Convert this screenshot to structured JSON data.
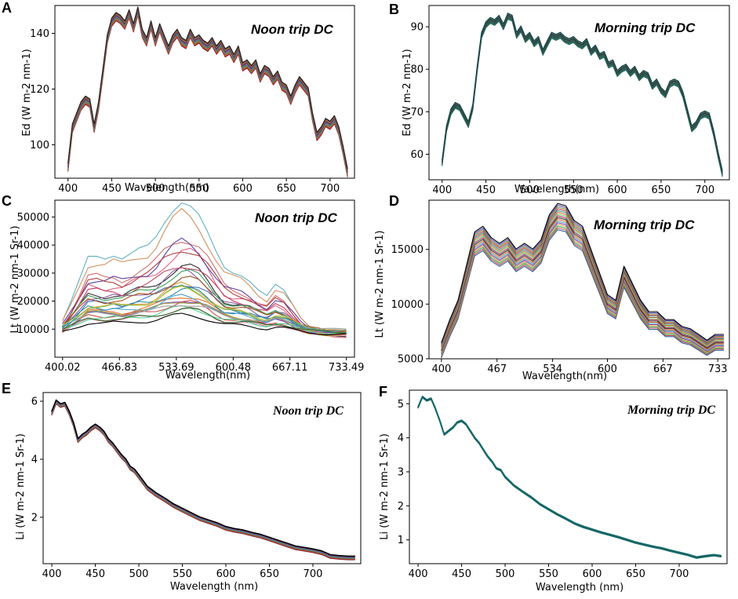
{
  "chart_data": [
    {
      "panel": "A",
      "type": "line",
      "title": "Noon trip DC",
      "xlabel": "Wavelength(nm)",
      "ylabel": "Ed (W m-2 nm-1)",
      "xlim": [
        385,
        728
      ],
      "ylim": [
        88,
        150
      ],
      "xticks": [
        400,
        450,
        500,
        550,
        600,
        650,
        700
      ],
      "xtick_labels": [
        "400",
        "450",
        "500",
        "550",
        "600",
        "650",
        "700"
      ],
      "yticks": [
        100,
        120,
        140
      ],
      "ytick_labels": [
        "100",
        "120",
        "140"
      ],
      "band_spread": 1.5,
      "series_count": 10,
      "colors": [
        "#7f1f2e",
        "#c04040",
        "#a06030",
        "#5f8f3f",
        "#3f6f9f",
        "#8f4f8f",
        "#2f2f2f",
        "#b07070",
        "#6f3f1f",
        "#1f1f1f"
      ],
      "x": [
        400,
        405,
        410,
        415,
        420,
        425,
        430,
        435,
        440,
        445,
        450,
        455,
        460,
        465,
        470,
        475,
        480,
        485,
        490,
        495,
        500,
        505,
        510,
        515,
        520,
        525,
        530,
        535,
        540,
        545,
        550,
        555,
        560,
        565,
        570,
        575,
        580,
        585,
        590,
        595,
        600,
        605,
        610,
        615,
        620,
        625,
        630,
        635,
        640,
        645,
        650,
        655,
        660,
        665,
        670,
        675,
        680,
        685,
        690,
        695,
        700,
        705,
        710,
        715,
        720
      ],
      "y": [
        92,
        106,
        110,
        114,
        116,
        115,
        106,
        114,
        126,
        138,
        144,
        146,
        145,
        143,
        147,
        142,
        148,
        140,
        137,
        143,
        137,
        142,
        138,
        134,
        138,
        140,
        137,
        136,
        140,
        137,
        138,
        136,
        135,
        137,
        134,
        136,
        133,
        134,
        131,
        134,
        128,
        129,
        127,
        129,
        124,
        127,
        126,
        123,
        125,
        121,
        120,
        116,
        120,
        123,
        121,
        119,
        110,
        103,
        105,
        108,
        107,
        109,
        105,
        98,
        90
      ]
    },
    {
      "panel": "B",
      "type": "line",
      "title": "Morning trip DC",
      "xlabel": "Wavelength(nm)",
      "ylabel": "Ed (W m-2 nm-1)",
      "xlim": [
        385,
        728
      ],
      "ylim": [
        54,
        95
      ],
      "xticks": [
        400,
        450,
        500,
        550,
        600,
        650,
        700
      ],
      "xtick_labels": [
        "400",
        "450",
        "500",
        "550",
        "600",
        "650",
        "700"
      ],
      "yticks": [
        60,
        70,
        80,
        90
      ],
      "ytick_labels": [
        "60",
        "70",
        "80",
        "90"
      ],
      "band_spread": 0.7,
      "series_count": 8,
      "colors": [
        "#1f5f4f",
        "#2f7f6f",
        "#1f3f3f",
        "#3f5f5f",
        "#2f4f3f",
        "#1f2f2f",
        "#4f6f6f",
        "#0f3f3f"
      ],
      "x": [
        400,
        405,
        410,
        415,
        420,
        425,
        430,
        435,
        440,
        445,
        450,
        455,
        460,
        465,
        470,
        475,
        480,
        485,
        490,
        495,
        500,
        505,
        510,
        515,
        520,
        525,
        530,
        535,
        540,
        545,
        550,
        555,
        560,
        565,
        570,
        575,
        580,
        585,
        590,
        595,
        600,
        605,
        610,
        615,
        620,
        625,
        630,
        635,
        640,
        645,
        650,
        655,
        660,
        665,
        670,
        675,
        680,
        685,
        690,
        695,
        700,
        705,
        710,
        715,
        720
      ],
      "y": [
        58,
        66,
        70,
        71.5,
        71,
        69,
        67,
        71,
        80,
        88,
        90.5,
        91.5,
        91,
        92,
        90,
        92.5,
        92,
        88,
        89.5,
        87,
        88,
        86,
        87,
        84,
        86,
        88,
        87.5,
        88,
        87,
        86.5,
        87,
        86,
        85.5,
        86.5,
        84,
        85,
        83,
        83.5,
        81,
        81.5,
        79,
        80,
        80.5,
        79,
        80,
        78,
        79,
        78.5,
        76,
        77,
        75,
        74,
        76.5,
        77,
        76.5,
        74,
        70,
        66,
        67,
        69,
        69.5,
        69,
        65,
        60,
        55.5
      ]
    },
    {
      "panel": "C",
      "type": "line",
      "title": "Noon trip DC",
      "xlabel": "Wavelength(nm)",
      "ylabel": "Lt (W m-2 nm-1 Sr-1)",
      "xlim": [
        391,
        743
      ],
      "ylim": [
        0,
        56000
      ],
      "xticks": [
        400.02,
        466.83,
        533.69,
        600.48,
        667.11,
        733.49
      ],
      "xtick_labels": [
        "400.02",
        "466.83",
        "533.69",
        "600.48",
        "667.11",
        "733.49"
      ],
      "yticks": [
        10000,
        20000,
        30000,
        40000,
        50000
      ],
      "ytick_labels": [
        "10000",
        "20000",
        "30000",
        "40000",
        "50000"
      ],
      "series_scale": [
        1.0,
        0.93,
        0.86,
        0.8,
        0.74,
        0.68,
        0.63,
        0.58,
        0.54,
        0.5,
        0.47,
        0.44,
        0.41,
        0.39,
        0.37,
        0.35,
        0.33,
        0.31,
        0.29,
        0.27,
        0.25,
        0.235,
        0.22,
        0.205,
        0.19,
        0.18
      ],
      "colors": [
        "#5fb0c0",
        "#d09060",
        "#d07070",
        "#e06080",
        "#6040a0",
        "#b04040",
        "#303030",
        "#8f5f9f",
        "#c04060",
        "#40a060",
        "#d0a040",
        "#4070c0",
        "#a05020",
        "#60b060",
        "#e07030",
        "#3090a0",
        "#c0c040",
        "#8040c0",
        "#d05050",
        "#50a0d0",
        "#9f9f3f",
        "#e080a0",
        "#4fcf8f",
        "#a0a0a0",
        "#2f6f2f",
        "#000000"
      ],
      "x": [
        400,
        410,
        420,
        430,
        440,
        450,
        460,
        470,
        480,
        490,
        500,
        510,
        520,
        530,
        540,
        550,
        560,
        570,
        580,
        590,
        600,
        610,
        620,
        630,
        640,
        650,
        660,
        670,
        680,
        690,
        700,
        710,
        720,
        733
      ],
      "y": [
        13000,
        20000,
        28000,
        36000,
        36000,
        35000,
        36000,
        35000,
        37000,
        39000,
        40000,
        43000,
        48000,
        52000,
        55000,
        54000,
        51000,
        45000,
        38000,
        32000,
        30000,
        29000,
        27000,
        24000,
        22000,
        26000,
        24000,
        19000,
        14000,
        11000,
        10000,
        9000,
        8500,
        8500
      ]
    },
    {
      "panel": "D",
      "type": "line",
      "title": "Morning trip DC",
      "xlabel": "Wavelength(nm)",
      "ylabel": "Lt (W m-2 nm-1 Sr-1)",
      "xlim": [
        385,
        747
      ],
      "ylim": [
        5000,
        19500
      ],
      "xticks": [
        400,
        467,
        534,
        600,
        667,
        733
      ],
      "xtick_labels": [
        "400",
        "467",
        "534",
        "600",
        "667",
        "733"
      ],
      "yticks": [
        5000,
        10000,
        15000
      ],
      "ytick_labels": [
        "5000",
        "10000",
        "15000"
      ],
      "band_spread": 1200,
      "series_count": 16,
      "colors": [
        "#3060a0",
        "#c05050",
        "#40a060",
        "#d0a040",
        "#8040a0",
        "#50a0c0",
        "#e07030",
        "#303030",
        "#a03060",
        "#6fbf6f",
        "#cf6f2f",
        "#2f8f8f",
        "#bf3f3f",
        "#7f7f2f",
        "#4f4fbf",
        "#000000"
      ],
      "x": [
        400,
        410,
        420,
        430,
        440,
        450,
        460,
        470,
        480,
        490,
        500,
        510,
        520,
        530,
        540,
        550,
        560,
        570,
        580,
        590,
        600,
        610,
        620,
        630,
        640,
        650,
        660,
        670,
        680,
        690,
        700,
        710,
        720,
        730,
        740
      ],
      "y": [
        5800,
        7800,
        9500,
        12500,
        15500,
        16000,
        15000,
        14500,
        15000,
        14000,
        14500,
        14000,
        14800,
        17000,
        18000,
        17800,
        16500,
        16000,
        14000,
        12000,
        10000,
        9500,
        12500,
        11000,
        9500,
        8500,
        8500,
        7800,
        7800,
        7200,
        7000,
        6500,
        6000,
        6500,
        6500
      ]
    },
    {
      "panel": "E",
      "type": "line",
      "title": "Noon trip DC",
      "xlabel": "Wavelength (nm)",
      "ylabel": "Li (W m-2 nm-1 Sr-1)",
      "xlim": [
        390,
        755
      ],
      "ylim": [
        0.4,
        6.3
      ],
      "xticks": [
        400,
        450,
        500,
        550,
        600,
        650,
        700
      ],
      "xtick_labels": [
        "400",
        "450",
        "500",
        "550",
        "600",
        "650",
        "700"
      ],
      "yticks": [
        2,
        4,
        6
      ],
      "ytick_labels": [
        "2",
        "4",
        "6"
      ],
      "band_spread": 0.06,
      "series_count": 6,
      "colors": [
        "#7f1f2e",
        "#c04040",
        "#5f8f3f",
        "#3f6f9f",
        "#8f4f8f",
        "#000000"
      ],
      "x": [
        400,
        405,
        410,
        415,
        420,
        425,
        430,
        435,
        440,
        445,
        450,
        455,
        460,
        465,
        470,
        475,
        480,
        485,
        490,
        495,
        500,
        510,
        520,
        530,
        540,
        550,
        560,
        570,
        580,
        590,
        600,
        610,
        620,
        630,
        640,
        650,
        660,
        670,
        680,
        690,
        700,
        710,
        720,
        730,
        740,
        748
      ],
      "y": [
        5.6,
        5.98,
        5.85,
        5.9,
        5.6,
        5.2,
        4.65,
        4.8,
        4.9,
        5.05,
        5.15,
        5.05,
        4.9,
        4.65,
        4.5,
        4.3,
        4.1,
        3.95,
        3.7,
        3.6,
        3.4,
        3.0,
        2.78,
        2.6,
        2.4,
        2.25,
        2.1,
        1.95,
        1.85,
        1.75,
        1.62,
        1.55,
        1.5,
        1.42,
        1.35,
        1.25,
        1.15,
        1.05,
        0.95,
        0.9,
        0.85,
        0.78,
        0.65,
        0.62,
        0.6,
        0.6
      ]
    },
    {
      "panel": "F",
      "type": "line",
      "title": "Morning trip DC",
      "xlabel": "Wavelength (nm)",
      "ylabel": "Li (W m-2 nm-1 Sr-1)",
      "xlim": [
        390,
        755
      ],
      "ylim": [
        0.3,
        5.4
      ],
      "xticks": [
        400,
        450,
        500,
        550,
        600,
        650,
        700
      ],
      "xtick_labels": [
        "400",
        "450",
        "500",
        "550",
        "600",
        "650",
        "700"
      ],
      "yticks": [
        1,
        2,
        3,
        4,
        5
      ],
      "ytick_labels": [
        "1",
        "2",
        "3",
        "4",
        "5"
      ],
      "band_spread": 0.02,
      "series_count": 3,
      "colors": [
        "#1f6f6f",
        "#0f5f5f",
        "#1a6a6a"
      ],
      "x": [
        400,
        405,
        410,
        415,
        420,
        425,
        430,
        435,
        440,
        445,
        450,
        455,
        460,
        465,
        470,
        475,
        480,
        485,
        490,
        495,
        500,
        510,
        520,
        530,
        540,
        550,
        560,
        570,
        580,
        590,
        600,
        610,
        620,
        630,
        640,
        650,
        660,
        670,
        680,
        690,
        700,
        710,
        720,
        730,
        740,
        748
      ],
      "y": [
        4.9,
        5.2,
        5.1,
        5.15,
        4.85,
        4.5,
        4.1,
        4.2,
        4.3,
        4.45,
        4.5,
        4.4,
        4.2,
        4.0,
        3.85,
        3.65,
        3.45,
        3.3,
        3.1,
        3.05,
        2.85,
        2.6,
        2.42,
        2.25,
        2.05,
        1.9,
        1.75,
        1.62,
        1.48,
        1.38,
        1.3,
        1.22,
        1.15,
        1.08,
        1.0,
        0.92,
        0.86,
        0.8,
        0.75,
        0.68,
        0.62,
        0.56,
        0.48,
        0.52,
        0.55,
        0.52
      ]
    }
  ]
}
